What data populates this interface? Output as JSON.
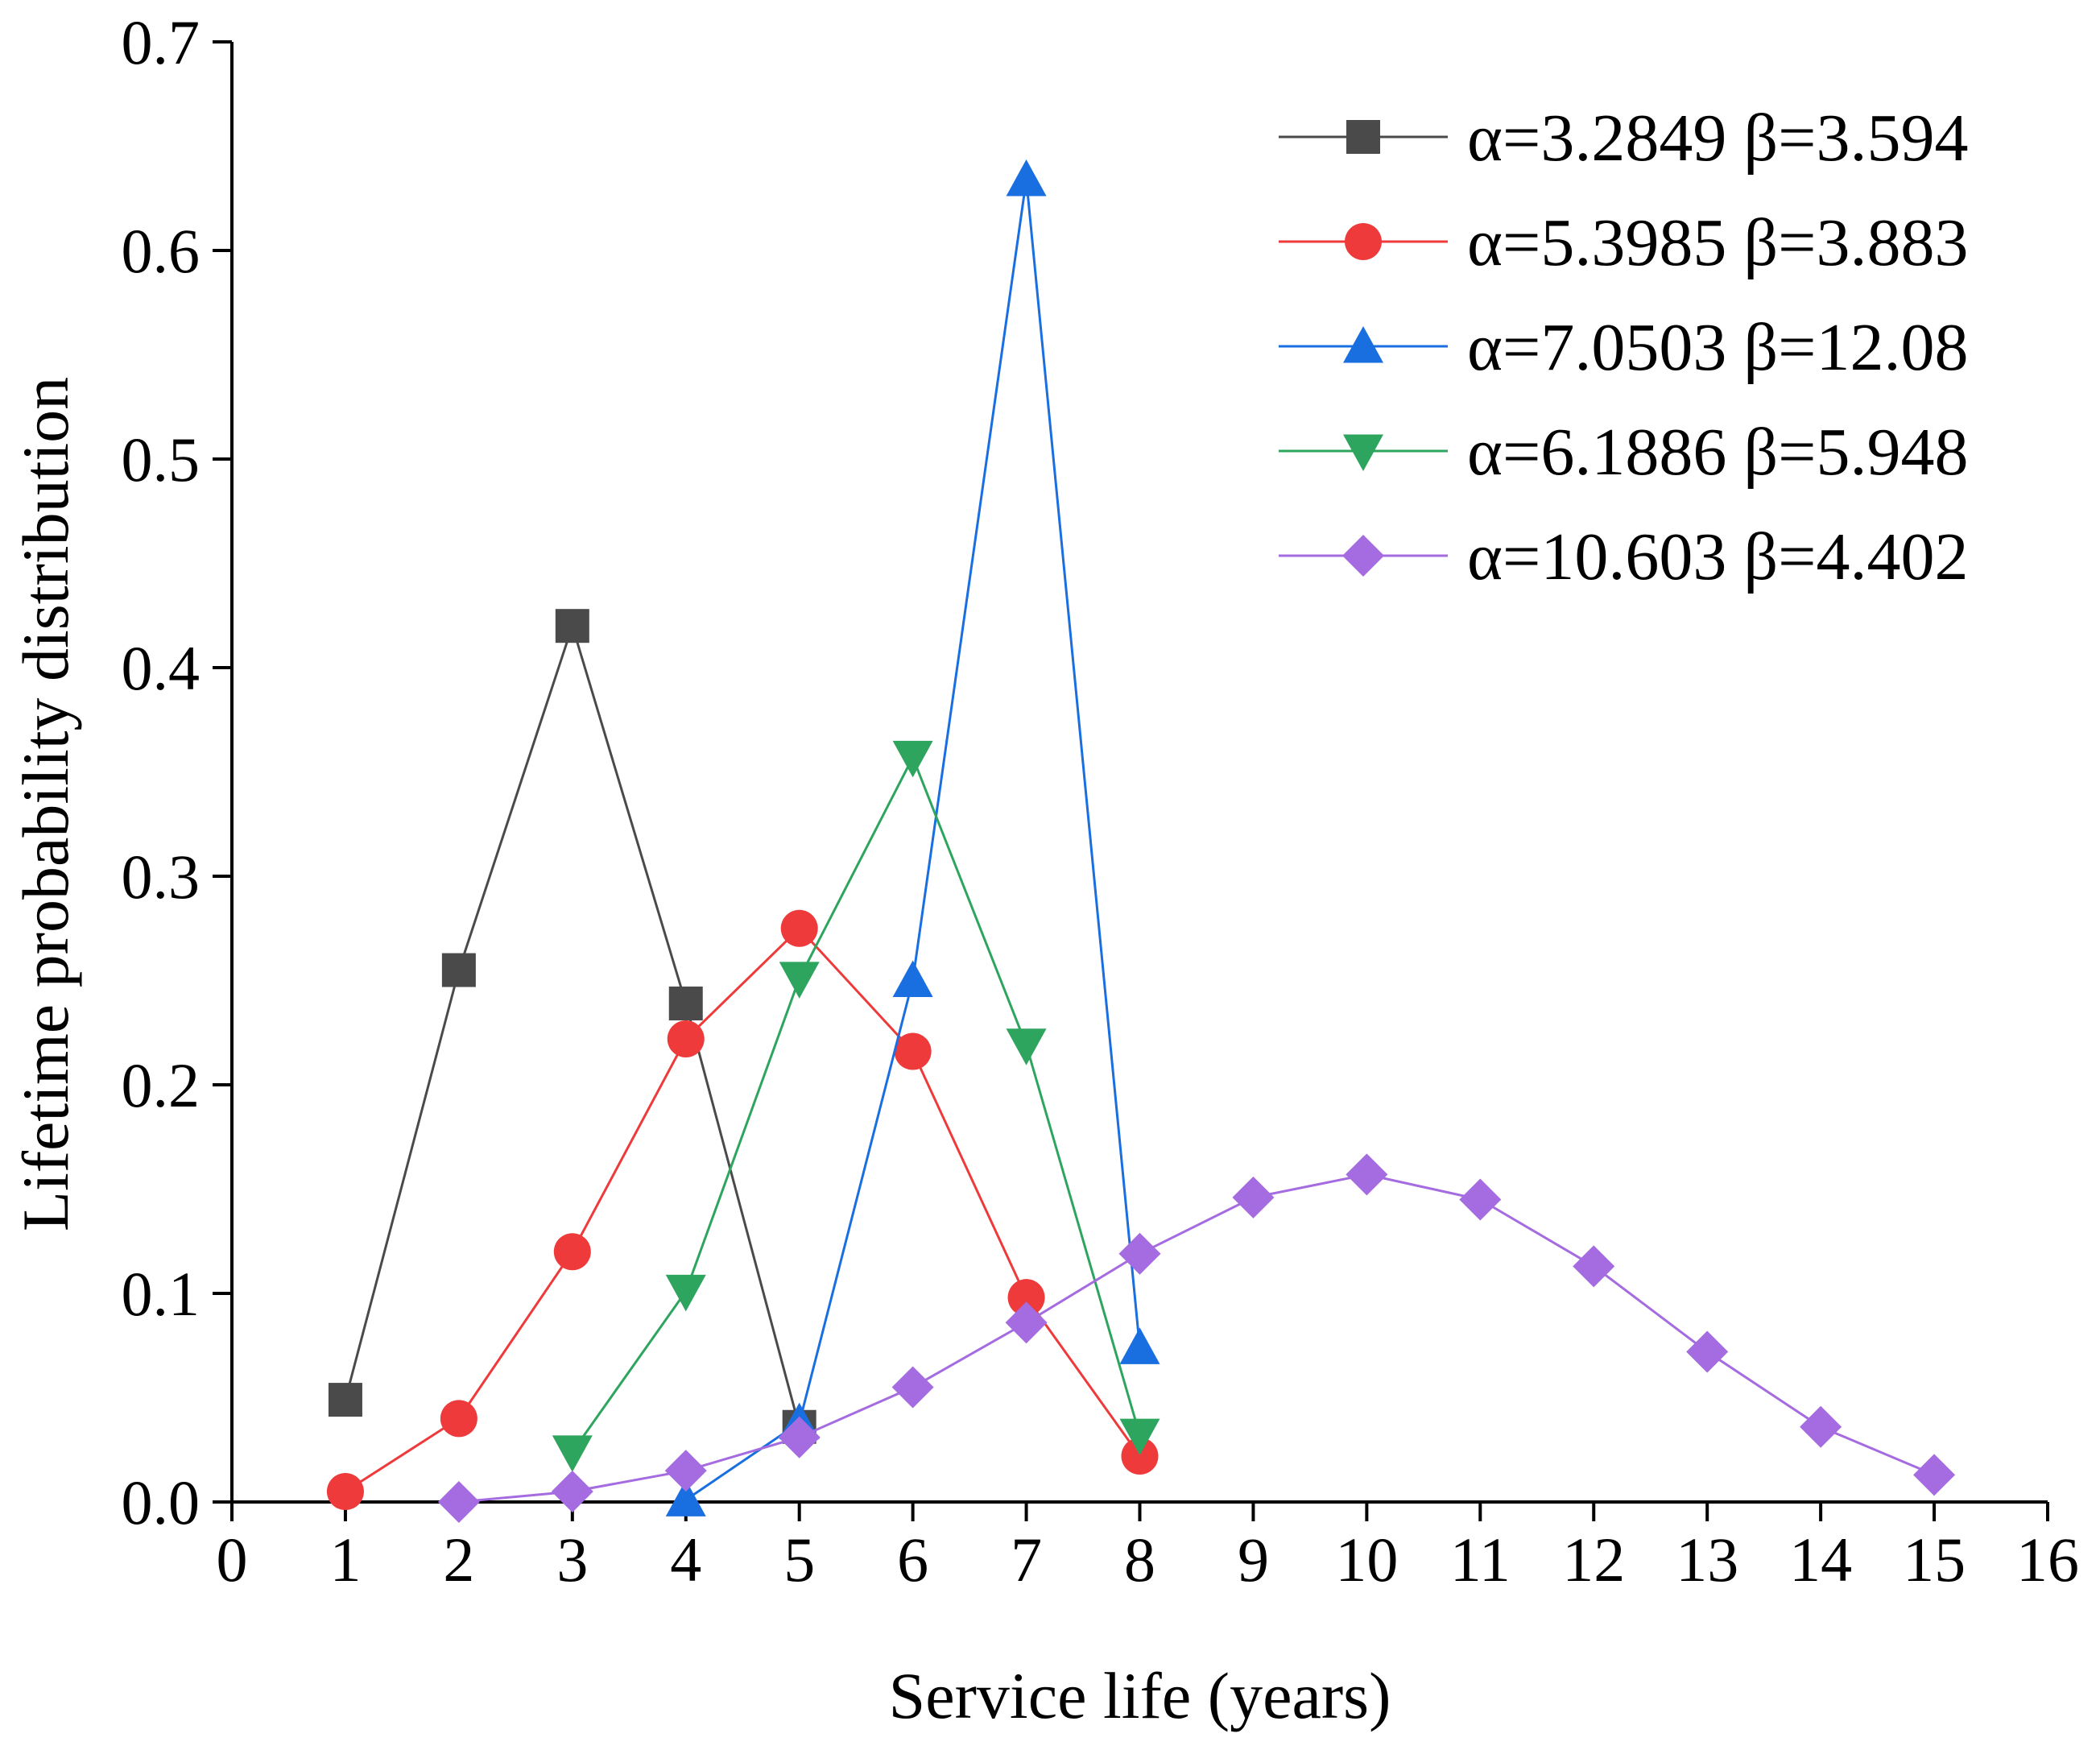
{
  "chart_data": {
    "type": "line",
    "title": "",
    "xlabel": "Service life (years)",
    "ylabel": "Lifetime probability distribution",
    "xlim": [
      0,
      16
    ],
    "ylim": [
      0,
      0.7
    ],
    "xticks": [
      "0",
      "1",
      "2",
      "3",
      "4",
      "5",
      "6",
      "7",
      "8",
      "9",
      "10",
      "11",
      "12",
      "13",
      "14",
      "15",
      "16"
    ],
    "yticks": [
      "0.0",
      "0.1",
      "0.2",
      "0.3",
      "0.4",
      "0.5",
      "0.6",
      "0.7"
    ],
    "grid": false,
    "legend_position": "top-right",
    "series": [
      {
        "name": "α=3.2849 β=3.594",
        "color": "#4a4a4a",
        "marker": "square",
        "x": [
          1,
          2,
          3,
          4,
          5
        ],
        "y": [
          0.049,
          0.255,
          0.42,
          0.239,
          0.036
        ]
      },
      {
        "name": "α=5.3985 β=3.883",
        "color": "#ee3a3a",
        "marker": "circle",
        "x": [
          1,
          2,
          3,
          4,
          5,
          6,
          7,
          8
        ],
        "y": [
          0.005,
          0.04,
          0.12,
          0.222,
          0.275,
          0.216,
          0.098,
          0.022
        ]
      },
      {
        "name": "α=7.0503 β=12.08",
        "color": "#1a6fe0",
        "marker": "triangle-up",
        "x": [
          4,
          5,
          6,
          7,
          8
        ],
        "y": [
          0.001,
          0.038,
          0.25,
          0.634,
          0.074
        ]
      },
      {
        "name": "α=6.1886 β=5.948",
        "color": "#2ea55e",
        "marker": "triangle-down",
        "x": [
          3,
          4,
          5,
          6,
          7,
          8
        ],
        "y": [
          0.024,
          0.101,
          0.251,
          0.357,
          0.219,
          0.032
        ]
      },
      {
        "name": "α=10.603 β=4.402",
        "color": "#a56be0",
        "marker": "diamond",
        "x": [
          2,
          3,
          4,
          5,
          6,
          7,
          8,
          9,
          10,
          11,
          12,
          13,
          14,
          15
        ],
        "y": [
          0.0,
          0.005,
          0.015,
          0.031,
          0.055,
          0.086,
          0.119,
          0.146,
          0.157,
          0.145,
          0.113,
          0.072,
          0.036,
          0.013
        ]
      }
    ]
  }
}
